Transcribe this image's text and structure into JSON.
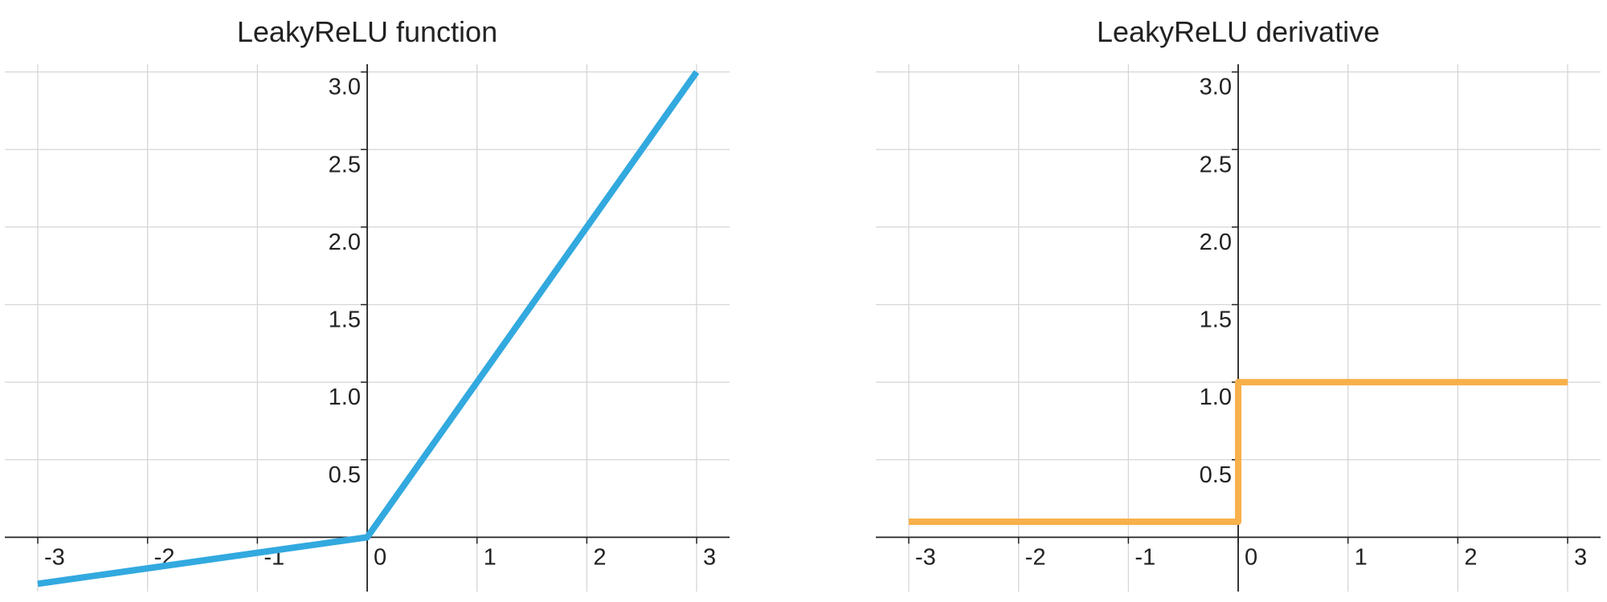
{
  "chart_data": [
    {
      "type": "line",
      "title": "LeakyReLU function",
      "x": [
        -3,
        0,
        3
      ],
      "values": [
        -0.3,
        0,
        3
      ],
      "color": "#32a9df",
      "xlim": [
        -3.3,
        3.3
      ],
      "ylim": [
        -0.35,
        3.05
      ],
      "xticks": [
        -3,
        -2,
        -1,
        0,
        1,
        2,
        3
      ],
      "yticks": [
        {
          "value": 0.5,
          "label": "0.5"
        },
        {
          "value": 1,
          "label": "1.0"
        },
        {
          "value": 1.5,
          "label": "1.5"
        },
        {
          "value": 2,
          "label": "2.0"
        },
        {
          "value": 2.5,
          "label": "2.5"
        },
        {
          "value": 3,
          "label": "3.0"
        }
      ],
      "grid": true
    },
    {
      "type": "line",
      "title": "LeakyReLU derivative",
      "x": [
        -3,
        0,
        0,
        3
      ],
      "values": [
        0.1,
        0.1,
        1,
        1
      ],
      "color": "#f8b04a",
      "xlim": [
        -3.3,
        3.3
      ],
      "ylim": [
        -0.35,
        3.05
      ],
      "xticks": [
        -3,
        -2,
        -1,
        0,
        1,
        2,
        3
      ],
      "yticks": [
        {
          "value": 0.5,
          "label": "0.5"
        },
        {
          "value": 1,
          "label": "1.0"
        },
        {
          "value": 1.5,
          "label": "1.5"
        },
        {
          "value": 2,
          "label": "2.0"
        },
        {
          "value": 2.5,
          "label": "2.5"
        },
        {
          "value": 3,
          "label": "3.0"
        }
      ],
      "grid": true
    }
  ]
}
